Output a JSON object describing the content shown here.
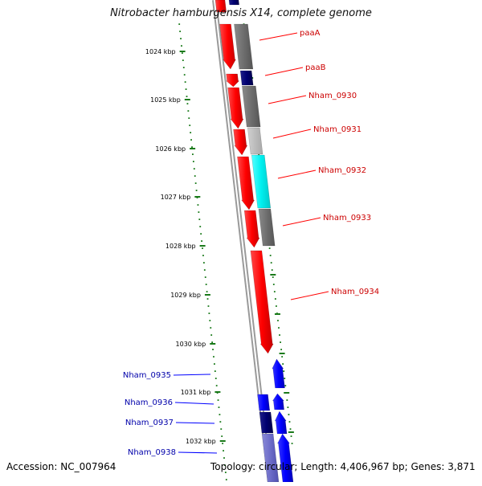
{
  "title": "Nitrobacter hamburgensis X14, complete genome",
  "footer": {
    "accession": "Accession: NC_007964",
    "topology": "Topology: circular; Length: 4,406,967 bp; Genes: 3,871"
  },
  "colors": {
    "forward_strand": "#ff0000",
    "reverse_strand": "#0000ff",
    "forward_label": "#cc0000",
    "reverse_label": "#0000aa",
    "ruler": "#1a7a1a",
    "backbone": "#7a7a7a"
  },
  "ruler": {
    "unit": "kbp",
    "ticks": [
      "1024 kbp",
      "1025 kbp",
      "1026 kbp",
      "1027 kbp",
      "1028 kbp",
      "1029 kbp",
      "1030 kbp",
      "1031 kbp",
      "1032 kbp"
    ]
  },
  "genes": [
    {
      "name": "paaA",
      "strand": "forward"
    },
    {
      "name": "paaB",
      "strand": "forward"
    },
    {
      "name": "Nham_0930",
      "strand": "forward"
    },
    {
      "name": "Nham_0931",
      "strand": "forward"
    },
    {
      "name": "Nham_0932",
      "strand": "forward"
    },
    {
      "name": "Nham_0933",
      "strand": "forward"
    },
    {
      "name": "Nham_0934",
      "strand": "forward"
    },
    {
      "name": "Nham_0935",
      "strand": "reverse"
    },
    {
      "name": "Nham_0936",
      "strand": "reverse"
    },
    {
      "name": "Nham_0937",
      "strand": "reverse"
    },
    {
      "name": "Nham_0938",
      "strand": "reverse"
    }
  ]
}
